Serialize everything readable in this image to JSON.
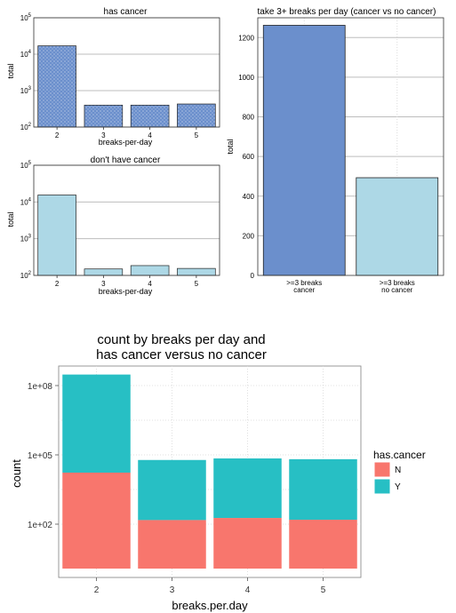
{
  "colors": {
    "cancer_bar": "#6b8fcc",
    "no_cancer_bar": "#add8e6",
    "n_fill": "#f8766d",
    "y_fill": "#27bfc4",
    "grid": "#bdbdbd"
  },
  "chart_data": [
    {
      "type": "bar",
      "title": "has cancer",
      "xlabel": "breaks-per-day",
      "ylabel": "total",
      "log_scale": true,
      "categories": [
        "2",
        "3",
        "4",
        "5"
      ],
      "values": [
        17000,
        400,
        400,
        430
      ],
      "ytick_labels": [
        {
          "base": "10",
          "exp": "2",
          "value": 100
        },
        {
          "base": "10",
          "exp": "3",
          "value": 1000
        },
        {
          "base": "10",
          "exp": "4",
          "value": 10000
        },
        {
          "base": "10",
          "exp": "5",
          "value": 100000
        }
      ],
      "fill": "#6b8fcc",
      "pattern": "white-dots"
    },
    {
      "type": "bar",
      "title": "don't have cancer",
      "xlabel": "breaks-per-day",
      "ylabel": "total",
      "log_scale": true,
      "categories": [
        "2",
        "3",
        "4",
        "5"
      ],
      "values": [
        15500,
        150,
        185,
        155
      ],
      "ytick_labels": [
        {
          "base": "10",
          "exp": "2",
          "value": 100
        },
        {
          "base": "10",
          "exp": "3",
          "value": 1000
        },
        {
          "base": "10",
          "exp": "4",
          "value": 10000
        },
        {
          "base": "10",
          "exp": "5",
          "value": 100000
        }
      ],
      "fill": "#add8e6"
    },
    {
      "type": "bar",
      "title": "take 3+ breaks per day (cancer vs no cancer)",
      "xlabel": "",
      "ylabel": "total",
      "categories": [
        ">=3 breaks\ncancer",
        ">=3 breaks\nno cancer"
      ],
      "values": [
        1262,
        493
      ],
      "ylim": [
        0,
        1300
      ],
      "yticks": [
        "0",
        "200",
        "400",
        "600",
        "800",
        "1000",
        "1200"
      ],
      "fills": [
        "#6b8fcc",
        "#add8e6"
      ]
    },
    {
      "type": "bar",
      "stacked": true,
      "log_scale": true,
      "title": "count by breaks per day and\nhas cancer versus no cancer",
      "xlabel": "breaks.per.day",
      "ylabel": "count",
      "categories": [
        "2",
        "3",
        "4",
        "5"
      ],
      "ytick_labels": [
        "1e+02",
        "1e+05",
        "1e+08"
      ],
      "series": [
        {
          "name": "N",
          "values": [
            17000,
            150,
            185,
            155
          ]
        },
        {
          "name": "Y",
          "values": [
            300000000,
            60000,
            70000,
            65000
          ]
        }
      ],
      "legend_title": "has.cancer",
      "legend_position": "right"
    }
  ]
}
